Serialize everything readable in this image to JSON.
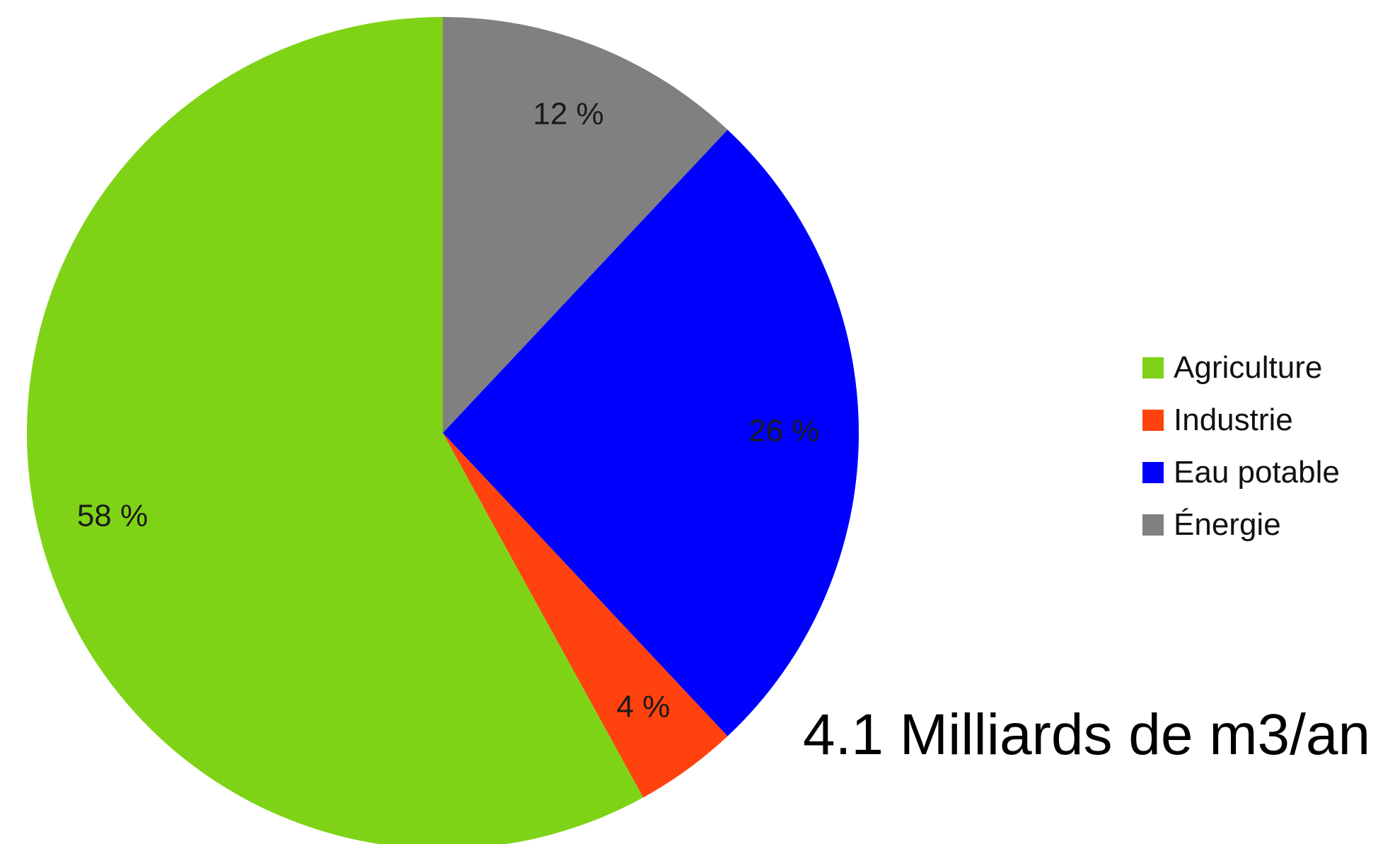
{
  "chart_data": {
    "type": "pie",
    "title": "",
    "slices": [
      {
        "name": "Agriculture",
        "value": 58,
        "label": "58 %",
        "color": "#7fd317"
      },
      {
        "name": "Industrie",
        "value": 4,
        "label": "4 %",
        "color": "#ff420e"
      },
      {
        "name": "Eau potable",
        "value": 26,
        "label": "26 %",
        "color": "#0000ff"
      },
      {
        "name": "Énergie",
        "value": 12,
        "label": "12 %",
        "color": "#808080"
      }
    ],
    "legend": {
      "placement": "right",
      "entries": [
        "Agriculture",
        "Industrie",
        "Eau potable",
        "Énergie"
      ]
    },
    "annotation": "4.1 Milliards de m3/an"
  }
}
